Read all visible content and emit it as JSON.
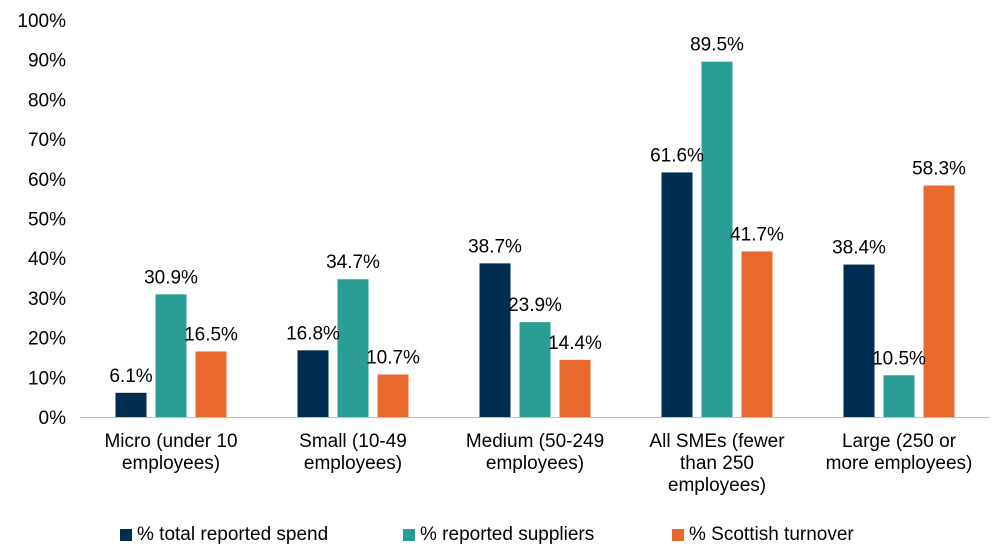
{
  "chart_data": {
    "type": "bar",
    "title": "",
    "xlabel": "",
    "ylabel": "",
    "ylim": [
      0,
      100
    ],
    "ytick_step": 10,
    "value_suffix": "%",
    "grid": false,
    "legend_position": "bottom",
    "categories": [
      [
        "Micro (under 10",
        "employees)"
      ],
      [
        "Small (10-49",
        "employees)"
      ],
      [
        "Medium (50-249",
        "employees)"
      ],
      [
        "All SMEs (fewer",
        "than 250",
        "employees)"
      ],
      [
        "Large (250 or",
        "more employees)"
      ]
    ],
    "series": [
      {
        "name": "% total reported spend",
        "color": "#002d52",
        "values": [
          6.1,
          16.8,
          38.7,
          61.6,
          38.4
        ]
      },
      {
        "name": "% reported suppliers",
        "color": "#2a9d94",
        "values": [
          30.9,
          34.7,
          23.9,
          89.5,
          10.5
        ]
      },
      {
        "name": "% Scottish turnover",
        "color": "#e8692e",
        "values": [
          16.5,
          10.7,
          14.4,
          41.7,
          58.3
        ]
      }
    ]
  }
}
